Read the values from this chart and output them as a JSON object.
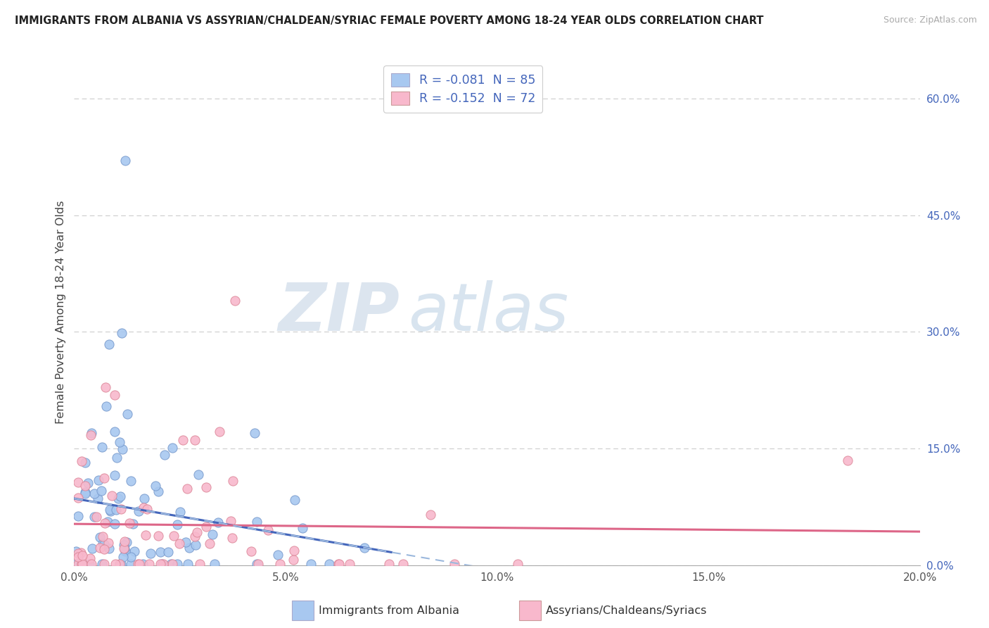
{
  "title": "IMMIGRANTS FROM ALBANIA VS ASSYRIAN/CHALDEAN/SYRIAC FEMALE POVERTY AMONG 18-24 YEAR OLDS CORRELATION CHART",
  "source": "Source: ZipAtlas.com",
  "ylabel": "Female Poverty Among 18-24 Year Olds",
  "xlim": [
    0.0,
    0.2
  ],
  "ylim": [
    0.0,
    0.65
  ],
  "right_yticks": [
    0.0,
    0.15,
    0.3,
    0.45,
    0.6
  ],
  "right_yticklabels": [
    "0.0%",
    "15.0%",
    "30.0%",
    "45.0%",
    "60.0%"
  ],
  "xticks": [
    0.0,
    0.05,
    0.1,
    0.15,
    0.2
  ],
  "xticklabels": [
    "0.0%",
    "5.0%",
    "10.0%",
    "15.0%",
    "20.0%"
  ],
  "series1_label": "Immigrants from Albania",
  "series2_label": "Assyrians/Chaldeans/Syriacs",
  "series1_color": "#a8c8f0",
  "series2_color": "#f8b8cc",
  "series1_edge": "#7799cc",
  "series2_edge": "#dd8899",
  "line1_color": "#4466bb",
  "line2_color": "#dd6688",
  "dash_color": "#9bb8dd",
  "legend_text_color": "#4466bb",
  "right_tick_color": "#4466bb",
  "watermark_zip_color": "#c8d8e8",
  "watermark_atlas_color": "#aac8e0",
  "N1": 85,
  "N2": 72
}
